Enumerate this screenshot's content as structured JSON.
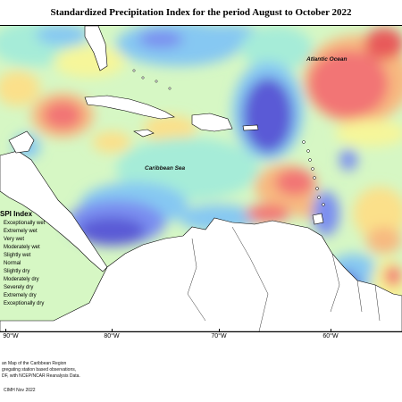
{
  "title": "Standardized Precipitation Index for the period August to October 2022",
  "map_labels": {
    "atlantic": "Atlantic Ocean",
    "caribbean": "Caribbean Sea"
  },
  "legend": {
    "title": "SPI Index",
    "items": [
      {
        "label": "Exceptionally wet",
        "color": "#5a5ad6"
      },
      {
        "label": "Extremely wet",
        "color": "#7a8ef0"
      },
      {
        "label": "Very wet",
        "color": "#86c8f2"
      },
      {
        "label": "Moderately wet",
        "color": "#a6ecd8"
      },
      {
        "label": "Slightly wet",
        "color": "#d6f7c4"
      },
      {
        "label": "Normal",
        "color": "#f6f69a"
      },
      {
        "label": "Slightly dry",
        "color": "#fbe08a"
      },
      {
        "label": "Moderately dry",
        "color": "#f7b980"
      },
      {
        "label": "Severely dry",
        "color": "#f59a7e"
      },
      {
        "label": "Extremely dry",
        "color": "#f27474"
      },
      {
        "label": "Exceptionally dry",
        "color": "#e85a5a"
      }
    ]
  },
  "axis_ticks": [
    "90°W",
    "80°W",
    "70°W",
    "60°W"
  ],
  "footnote": {
    "line1": "an Map of the Caribbean Region",
    "line2": "gregating station based observations,",
    "line3": "DF, with NCEP/NCAR Reanalysis Data."
  },
  "credit": "CIMH Nov 2022"
}
